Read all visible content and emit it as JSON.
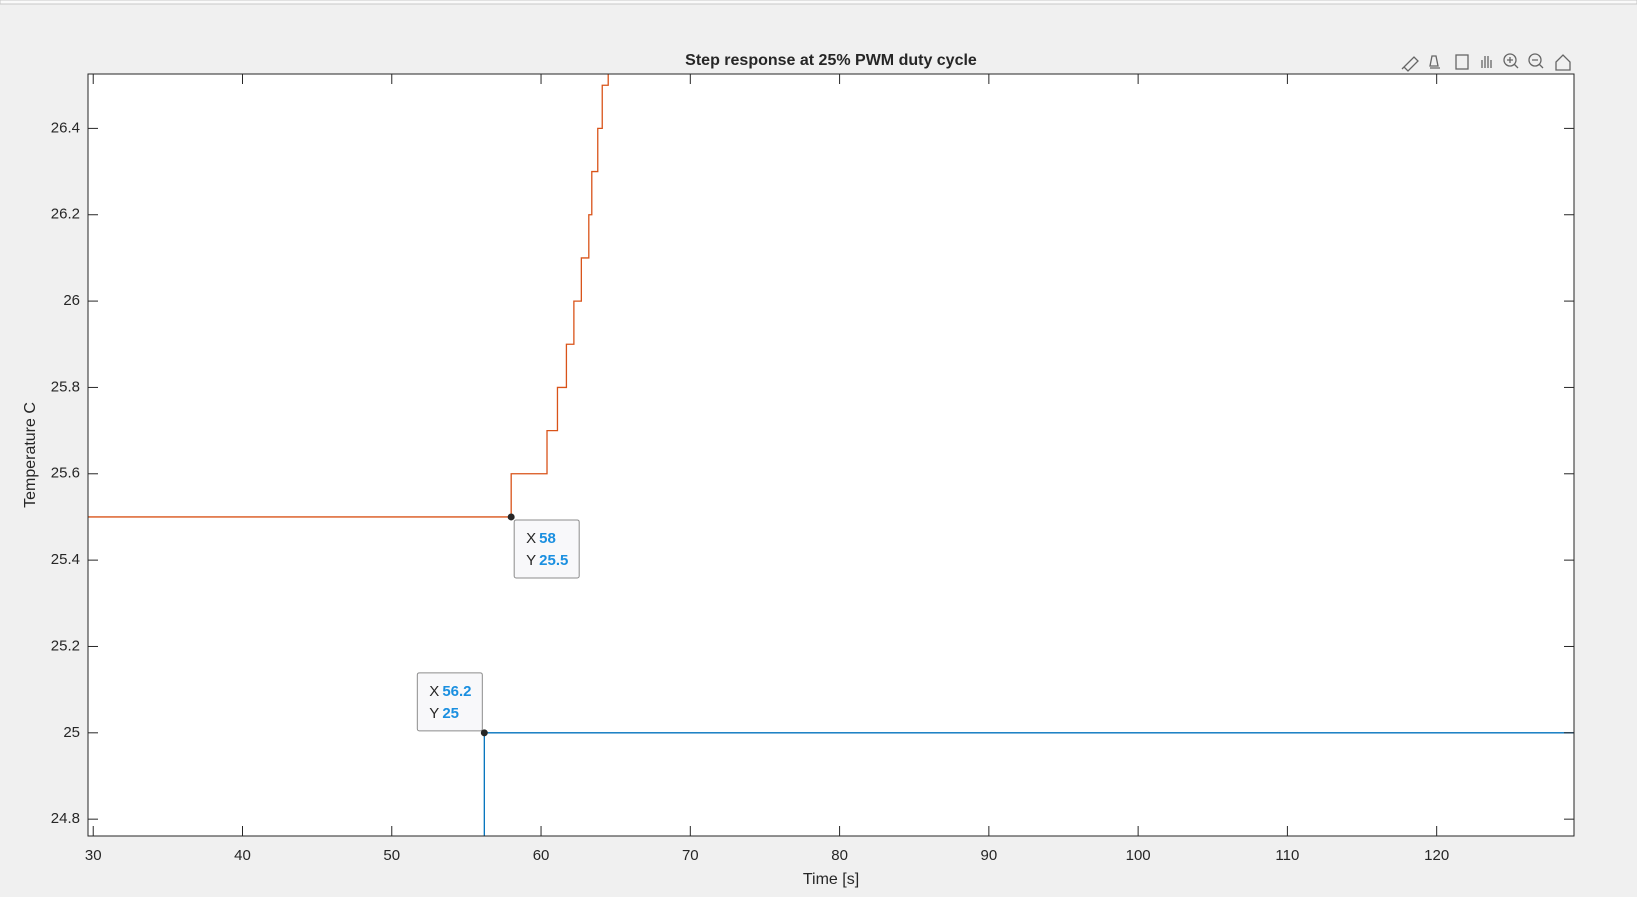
{
  "chart_data": {
    "type": "line",
    "title": "Step response at 25% PWM duty cycle",
    "xlabel": "Time [s]",
    "ylabel": "Temperature C",
    "xlim": [
      29.65,
      129.2
    ],
    "ylim": [
      24.761,
      26.526
    ],
    "xticks": [
      30,
      40,
      50,
      60,
      70,
      80,
      90,
      100,
      110,
      120
    ],
    "yticks": [
      24.8,
      25,
      25.2,
      25.4,
      25.6,
      25.8,
      26,
      26.2,
      26.4
    ],
    "grid": false,
    "series": [
      {
        "color": "#D95319",
        "x": [
          29.65,
          58,
          58,
          60.4,
          60.4,
          61.1,
          61.1,
          61.7,
          61.7,
          62.2,
          62.2,
          62.7,
          62.7,
          63.2,
          63.2,
          63.4,
          63.4,
          63.8,
          63.8,
          64.1,
          64.1,
          64.5,
          64.5
        ],
        "values": [
          25.5,
          25.5,
          25.6,
          25.6,
          25.7,
          25.7,
          25.8,
          25.8,
          25.9,
          25.9,
          26,
          26,
          26.1,
          26.1,
          26.2,
          26.2,
          26.3,
          26.3,
          26.4,
          26.4,
          26.5,
          26.5,
          26.6
        ]
      },
      {
        "color": "#0072BD",
        "x": [
          56.2,
          56.2,
          129.2
        ],
        "values": [
          24.7,
          25,
          25
        ]
      }
    ],
    "datatips": [
      {
        "x_label": "X",
        "y_label": "Y",
        "x": 58,
        "y": 25.5,
        "corner": "below-right"
      },
      {
        "x_label": "X",
        "y_label": "Y",
        "x": 56.2,
        "y": 25,
        "corner": "above-left"
      }
    ]
  }
}
